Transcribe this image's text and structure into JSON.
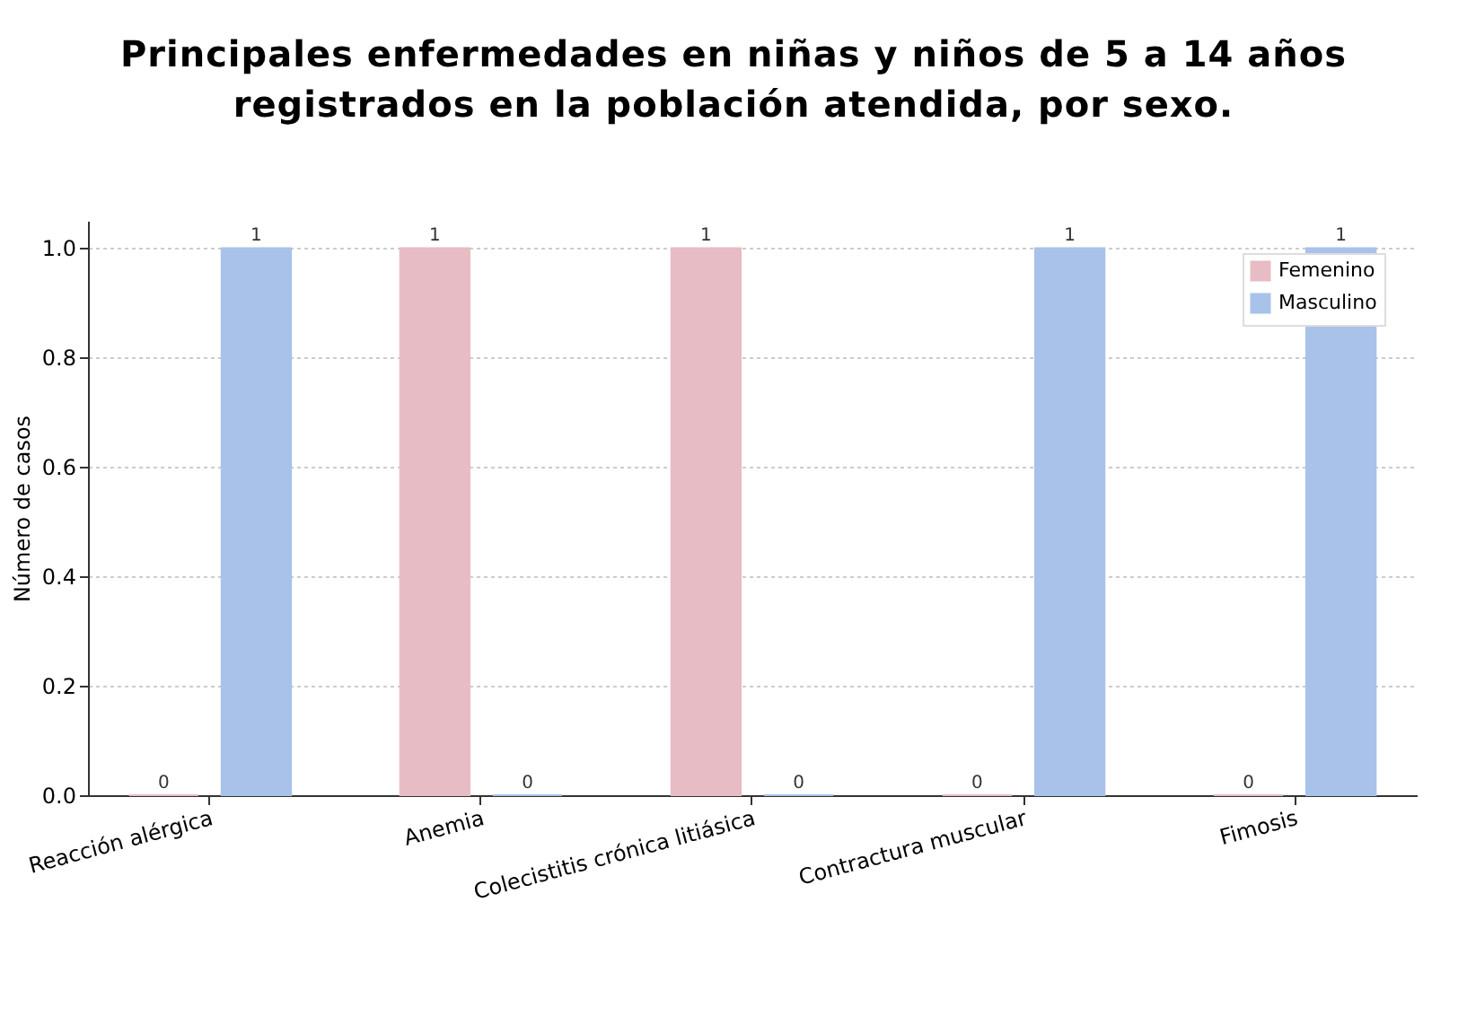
{
  "chart_data": {
    "type": "bar",
    "title": "Principales enfermedades en niñas y niños de 5 a 14 años registrados en la población atendida, por sexo.",
    "ylabel": "Número de casos",
    "categories": [
      "Reacción alérgica",
      "Anemia",
      "Colecistitis crónica litiásica",
      "Contractura muscular",
      "Fimosis"
    ],
    "series": [
      {
        "name": "Femenino",
        "color": "#e8bcc4",
        "values": [
          0,
          1,
          1,
          0,
          0
        ]
      },
      {
        "name": "Masculino",
        "color": "#a8c2ea",
        "values": [
          1,
          0,
          0,
          1,
          1
        ]
      }
    ],
    "ylim": [
      0,
      1.05
    ],
    "yticks": [
      {
        "value": 0,
        "label": "0.0"
      },
      0.2,
      0.4,
      0.6,
      0.8,
      {
        "value": 1,
        "label": "1.0"
      }
    ],
    "grid": "y",
    "legend": "top right",
    "data_labels": true
  }
}
